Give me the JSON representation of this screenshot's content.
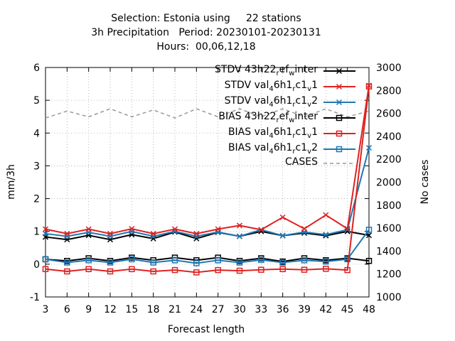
{
  "title": {
    "line1": "Selection: Estonia using     22 stations",
    "line2": "3h Precipitation   Period: 20230101-20230131",
    "line3": "Hours:  00,06,12,18"
  },
  "chart_data": {
    "type": "line",
    "xlabel": "Forecast length",
    "ylabel": "mm/3h",
    "y2label": "No cases",
    "x": [
      3,
      6,
      9,
      12,
      15,
      18,
      21,
      24,
      27,
      30,
      33,
      36,
      39,
      42,
      45,
      48
    ],
    "ylim": [
      -1,
      6
    ],
    "y2lim": [
      1000,
      3000
    ],
    "yticks": [
      "-1",
      "0",
      "1",
      "2",
      "3",
      "4",
      "5",
      "6"
    ],
    "y2ticks": [
      "1000",
      "1200",
      "1400",
      "1600",
      "1800",
      "2000",
      "2200",
      "2400",
      "2600",
      "2800",
      "3000"
    ],
    "series": [
      {
        "name": "STDV 43h22_ref_winter",
        "axis": "y",
        "color": "#000000",
        "marker": "x",
        "dash": false,
        "values": [
          0.83,
          0.75,
          0.88,
          0.75,
          0.9,
          0.78,
          0.98,
          0.78,
          0.97,
          0.85,
          1.0,
          0.87,
          0.95,
          0.87,
          1.0,
          0.88
        ]
      },
      {
        "name": "STDV val_46h1_rc1_v1",
        "axis": "y",
        "color": "#dd2222",
        "marker": "x",
        "dash": false,
        "values": [
          1.07,
          0.93,
          1.07,
          0.93,
          1.08,
          0.93,
          1.07,
          0.93,
          1.07,
          1.18,
          1.05,
          1.43,
          1.08,
          1.5,
          1.08,
          5.45
        ]
      },
      {
        "name": "STDV val_46h1_rc1_v2",
        "axis": "y",
        "color": "#1f77b4",
        "marker": "x",
        "dash": false,
        "values": [
          0.93,
          0.85,
          0.97,
          0.85,
          1.0,
          0.85,
          1.0,
          0.85,
          0.98,
          0.85,
          1.05,
          0.87,
          0.98,
          0.9,
          1.05,
          3.55
        ]
      },
      {
        "name": "BIAS 43h22_ref_winter",
        "axis": "y",
        "color": "#000000",
        "marker": "s",
        "dash": false,
        "values": [
          0.15,
          0.1,
          0.18,
          0.1,
          0.2,
          0.12,
          0.2,
          0.12,
          0.2,
          0.1,
          0.18,
          0.08,
          0.18,
          0.12,
          0.18,
          0.1
        ]
      },
      {
        "name": "BIAS val_46h1_rc1_v1",
        "axis": "y",
        "color": "#dd2222",
        "marker": "s",
        "dash": false,
        "values": [
          -0.15,
          -0.22,
          -0.15,
          -0.22,
          -0.15,
          -0.22,
          -0.18,
          -0.25,
          -0.18,
          -0.2,
          -0.17,
          -0.15,
          -0.17,
          -0.14,
          -0.18,
          5.42
        ]
      },
      {
        "name": "BIAS val_46h1_rc1_v2",
        "axis": "y",
        "color": "#1f77b4",
        "marker": "s",
        "dash": false,
        "values": [
          0.15,
          0.05,
          0.12,
          0.05,
          0.15,
          0.05,
          0.12,
          0.03,
          0.12,
          0.05,
          0.13,
          0.05,
          0.12,
          0.08,
          0.15,
          1.05
        ]
      },
      {
        "name": "CASES",
        "axis": "y2",
        "color": "#999999",
        "marker": "",
        "dash": true,
        "values": [
          2560,
          2620,
          2570,
          2640,
          2570,
          2630,
          2560,
          2640,
          2570,
          2640,
          2570,
          2640,
          2570,
          2640,
          2570,
          2620
        ]
      }
    ],
    "legend": {
      "placement": "top-right",
      "entries": [
        {
          "main": "STDV 43h22",
          "s1": "r",
          "m1": "ef",
          "s2": "w",
          "m2": "inter"
        },
        {
          "main": "STDV val",
          "s1": "4",
          "m1": "6h1",
          "s2": "r",
          "m2": "c1",
          "s3": "v",
          "m3": "1"
        },
        {
          "main": "STDV val",
          "s1": "4",
          "m1": "6h1",
          "s2": "r",
          "m2": "c1",
          "s3": "v",
          "m3": "2"
        },
        {
          "main": "BIAS 43h22",
          "s1": "r",
          "m1": "ef",
          "s2": "w",
          "m2": "inter"
        },
        {
          "main": "BIAS val",
          "s1": "4",
          "m1": "6h1",
          "s2": "r",
          "m2": "c1",
          "s3": "v",
          "m3": "1"
        },
        {
          "main": "BIAS val",
          "s1": "4",
          "m1": "6h1",
          "s2": "r",
          "m2": "c1",
          "s3": "v",
          "m3": "2"
        },
        {
          "main": "CASES"
        }
      ]
    },
    "grid": "dotted"
  }
}
